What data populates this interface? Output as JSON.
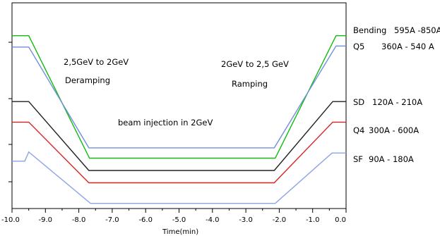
{
  "chart_data": {
    "type": "line",
    "xlabel": "Time(min)",
    "ylabel": "",
    "xlim": [
      -10.0,
      0.0
    ],
    "x_ticks": [
      "-10.0",
      "-9.0",
      "-8.0",
      "-7.0",
      "-6.0",
      "-5.0",
      "-4.0",
      "-3.0",
      "-2.0",
      "-1.0",
      "0.0"
    ],
    "y_scale": "normalized current (0 = bottom of frame, 1 = top of frame); y axis has no printed values",
    "grid": false,
    "series": [
      {
        "name": "Bending",
        "range": "595A -850A",
        "color": "#11bb11",
        "x": [
          -10.0,
          -9.5,
          -7.68,
          -2.12,
          -0.3,
          0.0
        ],
        "y": [
          0.84,
          0.84,
          0.245,
          0.245,
          0.84,
          0.84
        ]
      },
      {
        "name": "Q5",
        "range": "360A - 540 A",
        "color": "#6f8fdd",
        "x": [
          -10.0,
          -9.5,
          -7.7,
          -2.15,
          -0.3,
          0.0
        ],
        "y": [
          0.785,
          0.785,
          0.295,
          0.295,
          0.79,
          0.79
        ]
      },
      {
        "name": "SD",
        "range": "120A - 210A",
        "color": "#222222",
        "x": [
          -10.0,
          -9.5,
          -7.7,
          -2.15,
          -0.4,
          0.0
        ],
        "y": [
          0.52,
          0.52,
          0.185,
          0.185,
          0.52,
          0.52
        ]
      },
      {
        "name": "Q4",
        "range": "300A - 600A",
        "color": "#dd2222",
        "x": [
          -10.0,
          -9.5,
          -7.7,
          -2.15,
          -0.4,
          0.0
        ],
        "y": [
          0.42,
          0.42,
          0.125,
          0.125,
          0.42,
          0.42
        ]
      },
      {
        "name": "SF",
        "range": "90A - 180A",
        "color": "#8fa2e6",
        "x": [
          -10.0,
          -9.62,
          -9.5,
          -7.65,
          -2.12,
          -0.42,
          0.0
        ],
        "y": [
          0.23,
          0.23,
          0.275,
          0.025,
          0.025,
          0.27,
          0.27
        ]
      }
    ],
    "annotations": [
      {
        "id": "deramp-title",
        "text": "2,5GeV to 2GeV"
      },
      {
        "id": "deramp-word",
        "text": "Deramping"
      },
      {
        "id": "ramp-title",
        "text": "2GeV to 2,5 GeV"
      },
      {
        "id": "ramp-word",
        "text": "Ramping"
      },
      {
        "id": "injection",
        "text": "beam injection in 2GeV"
      }
    ]
  }
}
